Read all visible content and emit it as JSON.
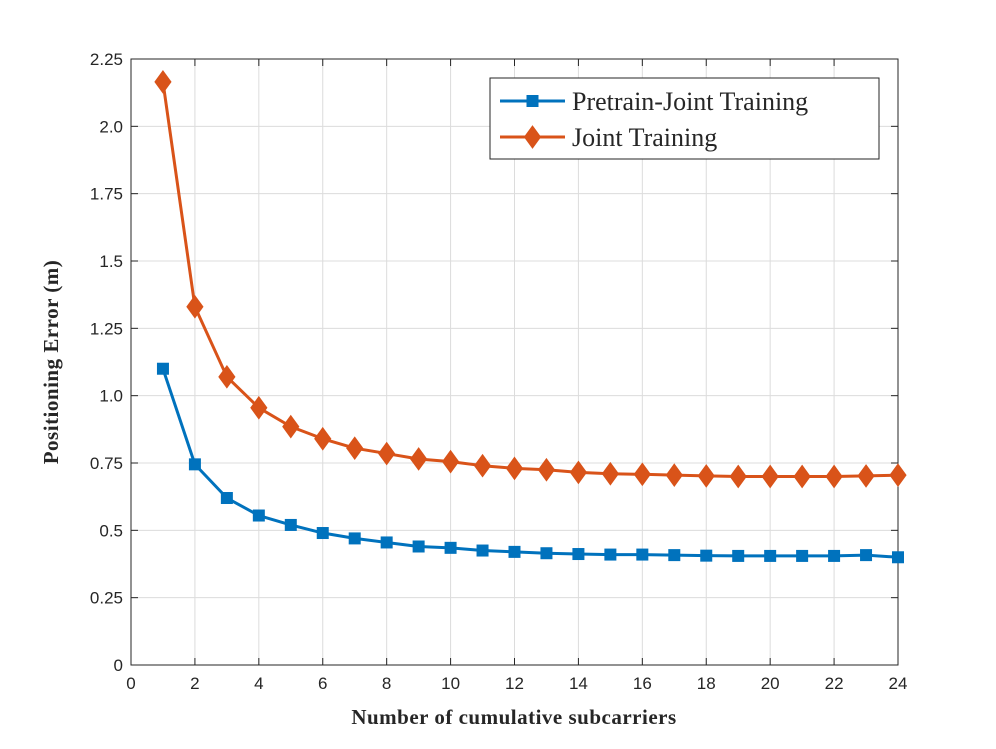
{
  "chart_data": {
    "type": "line",
    "title": "",
    "xlabel": "Number  of  cumulative  subcarriers",
    "ylabel": "Positioning  Error  (m)",
    "xlim": [
      0,
      24
    ],
    "ylim": [
      0,
      2.25
    ],
    "grid": true,
    "legend_position": "top-right",
    "x_ticks": [
      0,
      2,
      4,
      6,
      8,
      10,
      12,
      14,
      16,
      18,
      20,
      22,
      24
    ],
    "x_tick_labels": [
      "0",
      "2",
      "4",
      "6",
      "8",
      "10",
      "12",
      "14",
      "16",
      "18",
      "20",
      "22",
      "24"
    ],
    "y_ticks": [
      0,
      0.25,
      0.5,
      0.75,
      1.0,
      1.25,
      1.5,
      1.75,
      2.0,
      2.25
    ],
    "y_tick_labels": [
      "0",
      "0.25",
      "0.5",
      "0.75",
      "1.0",
      "1.25",
      "1.5",
      "1.75",
      "2.0",
      "2.25"
    ],
    "x": [
      1,
      2,
      3,
      4,
      5,
      6,
      7,
      8,
      9,
      10,
      11,
      12,
      13,
      14,
      15,
      16,
      17,
      18,
      19,
      20,
      21,
      22,
      23,
      24
    ],
    "series": [
      {
        "name": "Pretrain-Joint Training",
        "color": "#0072BD",
        "marker": "square",
        "values": [
          1.1,
          0.745,
          0.62,
          0.555,
          0.52,
          0.49,
          0.47,
          0.455,
          0.44,
          0.435,
          0.425,
          0.42,
          0.415,
          0.412,
          0.41,
          0.41,
          0.408,
          0.406,
          0.405,
          0.405,
          0.405,
          0.405,
          0.408,
          0.4
        ]
      },
      {
        "name": "Joint Training",
        "color": "#D95319",
        "marker": "diamond",
        "values": [
          2.165,
          1.33,
          1.07,
          0.955,
          0.885,
          0.84,
          0.805,
          0.785,
          0.765,
          0.755,
          0.74,
          0.73,
          0.725,
          0.715,
          0.71,
          0.708,
          0.705,
          0.702,
          0.7,
          0.7,
          0.7,
          0.7,
          0.702,
          0.705
        ]
      }
    ]
  }
}
